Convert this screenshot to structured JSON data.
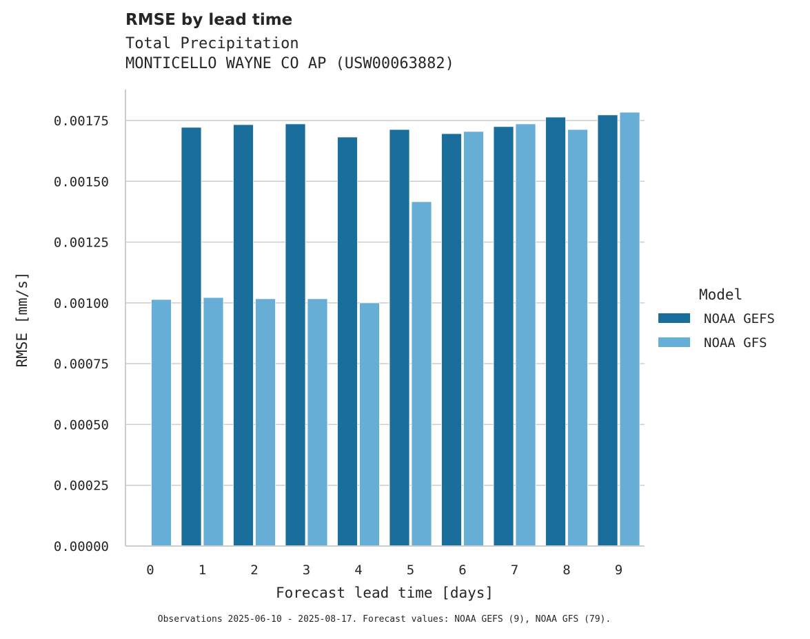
{
  "header": {
    "title": "RMSE by lead time",
    "subtitle_line1": "Total Precipitation",
    "subtitle_line2": "MONTICELLO WAYNE CO AP (USW00063882)"
  },
  "footnote": "Observations 2025-06-10 - 2025-08-17. Forecast values: NOAA GEFS (9), NOAA GFS (79).",
  "colors": {
    "gefs": "#1a6e9c",
    "gfs": "#67aed6",
    "grid": "#cccccc",
    "axis": "#cccccc",
    "text": "#262626"
  },
  "chart_data": {
    "type": "bar",
    "title": "RMSE by lead time",
    "subtitle": "Total Precipitation — MONTICELLO WAYNE CO AP (USW00063882)",
    "xlabel": "Forecast lead time [days]",
    "ylabel": "RMSE [mm/s]",
    "categories": [
      "0",
      "1",
      "2",
      "3",
      "4",
      "5",
      "6",
      "7",
      "8",
      "9"
    ],
    "series": [
      {
        "name": "NOAA GEFS",
        "color": "#1a6e9c",
        "values": [
          null,
          0.001722,
          0.001733,
          0.001736,
          0.001682,
          0.001713,
          0.001696,
          0.001725,
          0.001764,
          0.001773
        ]
      },
      {
        "name": "NOAA GFS",
        "color": "#67aed6",
        "values": [
          0.001014,
          0.001022,
          0.001017,
          0.001017,
          0.001,
          0.001416,
          0.001705,
          0.001736,
          0.001713,
          0.001784
        ]
      }
    ],
    "ylim": [
      0,
      0.00188
    ],
    "yticks": [
      "0.00000",
      "0.00025",
      "0.00050",
      "0.00075",
      "0.00100",
      "0.00125",
      "0.00150",
      "0.00175"
    ],
    "ytick_values": [
      0,
      0.00025,
      0.0005,
      0.00075,
      0.001,
      0.00125,
      0.0015,
      0.00175
    ],
    "grid": "horizontal",
    "legend": {
      "title": "Model",
      "position": "right",
      "entries": [
        "NOAA GEFS",
        "NOAA GFS"
      ]
    }
  }
}
